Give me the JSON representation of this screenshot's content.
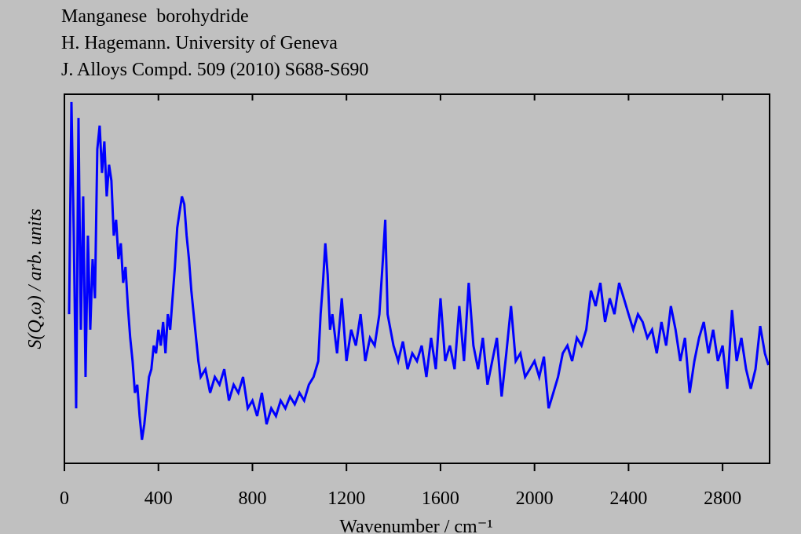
{
  "chart_data": {
    "type": "line",
    "title": "Manganese  borohydride",
    "subtitle": [
      "H. Hagemann. University of Geneva",
      "J. Alloys Compd. 509 (2010) S688-S690"
    ],
    "xlabel": "Wavenumber / cm⁻¹",
    "ylabel": "S(Q,ω) / arb. units",
    "xlim": [
      0,
      3000
    ],
    "ylim": [
      0,
      100
    ],
    "xticks": [
      0,
      400,
      800,
      1200,
      1600,
      2000,
      2400,
      2800
    ],
    "x": [
      20,
      30,
      40,
      50,
      60,
      70,
      80,
      90,
      100,
      110,
      120,
      130,
      140,
      150,
      160,
      170,
      180,
      190,
      200,
      210,
      220,
      230,
      240,
      250,
      260,
      270,
      280,
      290,
      300,
      310,
      320,
      330,
      340,
      350,
      360,
      370,
      380,
      390,
      400,
      410,
      420,
      430,
      440,
      450,
      460,
      470,
      480,
      490,
      500,
      510,
      520,
      530,
      540,
      550,
      560,
      570,
      580,
      600,
      620,
      640,
      660,
      680,
      700,
      720,
      740,
      760,
      780,
      800,
      820,
      840,
      860,
      880,
      900,
      920,
      940,
      960,
      980,
      1000,
      1020,
      1040,
      1060,
      1080,
      1090,
      1100,
      1110,
      1120,
      1130,
      1140,
      1160,
      1180,
      1200,
      1220,
      1240,
      1260,
      1280,
      1300,
      1320,
      1340,
      1355,
      1365,
      1375,
      1400,
      1420,
      1440,
      1460,
      1480,
      1500,
      1520,
      1540,
      1560,
      1580,
      1600,
      1620,
      1640,
      1660,
      1680,
      1700,
      1720,
      1740,
      1760,
      1780,
      1800,
      1820,
      1840,
      1860,
      1880,
      1900,
      1920,
      1940,
      1960,
      1980,
      2000,
      2020,
      2040,
      2060,
      2080,
      2100,
      2120,
      2140,
      2160,
      2180,
      2200,
      2220,
      2240,
      2260,
      2280,
      2300,
      2320,
      2340,
      2360,
      2380,
      2400,
      2420,
      2440,
      2460,
      2480,
      2500,
      2520,
      2540,
      2560,
      2580,
      2600,
      2620,
      2640,
      2660,
      2680,
      2700,
      2720,
      2740,
      2760,
      2780,
      2800,
      2820,
      2840,
      2860,
      2880,
      2900,
      2920,
      2940,
      2960,
      2980,
      2995
    ],
    "series": [
      {
        "color": "#0000ff",
        "values": [
          40.4,
          97.9,
          61.7,
          14.9,
          93.6,
          36.2,
          72.3,
          23.4,
          61.7,
          36.2,
          55.3,
          44.7,
          85.1,
          91.5,
          78.7,
          87.2,
          72.3,
          80.9,
          76.6,
          61.7,
          66.0,
          55.3,
          59.6,
          48.9,
          53.2,
          42.6,
          34.0,
          27.7,
          19.1,
          21.3,
          12.8,
          6.4,
          10.6,
          17.0,
          23.4,
          25.5,
          31.9,
          29.8,
          36.2,
          31.9,
          38.3,
          29.8,
          40.4,
          36.2,
          44.7,
          53.2,
          63.8,
          68.1,
          72.3,
          70.2,
          61.7,
          55.3,
          46.8,
          40.4,
          34.0,
          27.7,
          23.4,
          25.5,
          19.1,
          23.4,
          21.3,
          25.5,
          17.0,
          21.3,
          19.1,
          23.4,
          14.9,
          17.0,
          12.8,
          19.1,
          10.6,
          14.9,
          12.8,
          17.0,
          14.9,
          18.1,
          16.0,
          19.1,
          17.0,
          21.3,
          23.4,
          27.7,
          40.4,
          48.9,
          59.6,
          51.1,
          36.2,
          40.4,
          29.8,
          44.7,
          27.7,
          36.2,
          31.9,
          40.4,
          27.7,
          34.0,
          31.9,
          40.4,
          55.3,
          66.0,
          40.4,
          31.9,
          27.7,
          33.0,
          25.5,
          29.8,
          27.7,
          31.9,
          23.4,
          34.0,
          25.5,
          44.7,
          27.7,
          31.9,
          25.5,
          42.6,
          27.7,
          48.9,
          31.9,
          25.5,
          34.0,
          21.3,
          27.7,
          34.0,
          18.1,
          29.8,
          42.6,
          27.7,
          29.8,
          23.4,
          25.5,
          27.7,
          23.4,
          28.9,
          14.9,
          19.1,
          23.4,
          29.8,
          31.9,
          27.7,
          34.0,
          31.9,
          36.2,
          46.8,
          42.6,
          48.9,
          38.3,
          44.7,
          40.4,
          48.9,
          44.7,
          40.4,
          36.2,
          40.4,
          38.3,
          34.0,
          36.2,
          29.8,
          38.3,
          31.9,
          42.6,
          36.2,
          27.7,
          34.0,
          19.1,
          27.7,
          34.0,
          38.3,
          29.8,
          36.2,
          27.7,
          31.9,
          20.2,
          41.5,
          27.7,
          34.0,
          25.5,
          20.2,
          25.5,
          37.2,
          29.8,
          26.6
        ]
      }
    ]
  }
}
